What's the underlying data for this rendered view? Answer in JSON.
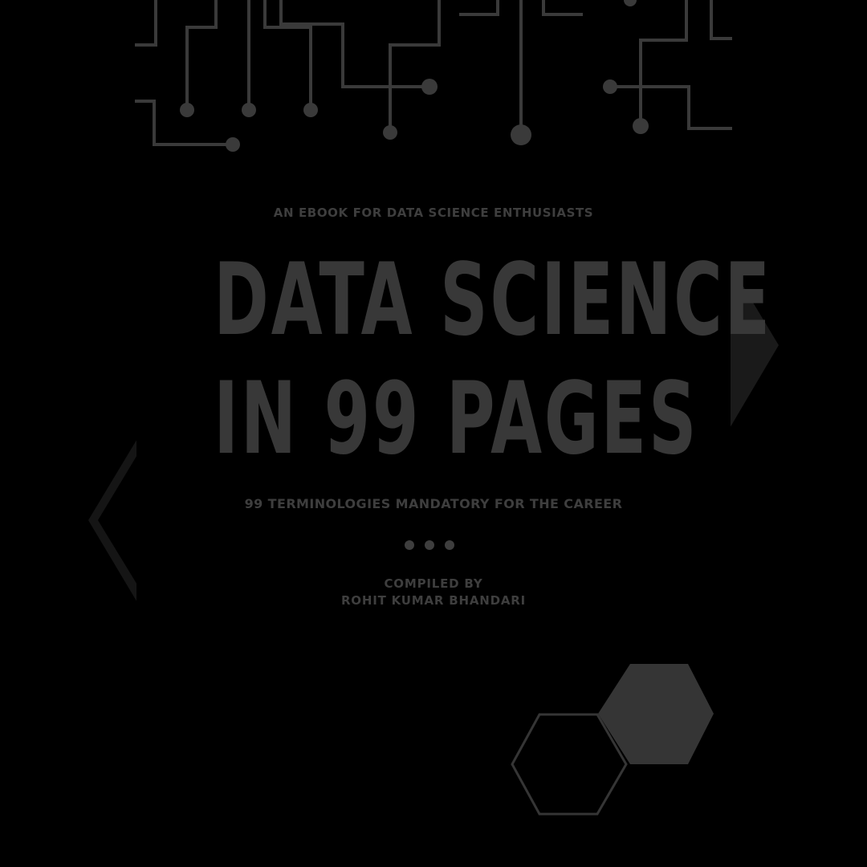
{
  "cover": {
    "subtitle": "AN EBOOK FOR DATA SCIENCE ENTHUSIASTS",
    "title_line_1": "DATA SCIENCE",
    "title_line_2": "IN 99 PAGES",
    "tagline": "99 TERMINOLOGIES MANDATORY FOR THE CAREER",
    "credit_label": "COMPILED BY",
    "credit_name": "ROHIT KUMAR BHANDARI"
  },
  "colors": {
    "background": "#000000",
    "text": "#3d3d3d",
    "circuit": "#3a3a3a",
    "hexagon_fill": "#353535",
    "hexagon_outline": "#353535",
    "side_arrows": "#161616"
  },
  "decorations": {
    "top": "circuit-board-lines",
    "right": "right-arrow-chevron",
    "left": "left-arrow-chevron",
    "bottom_right": "hexagon-pair",
    "divider": "three-dots"
  }
}
